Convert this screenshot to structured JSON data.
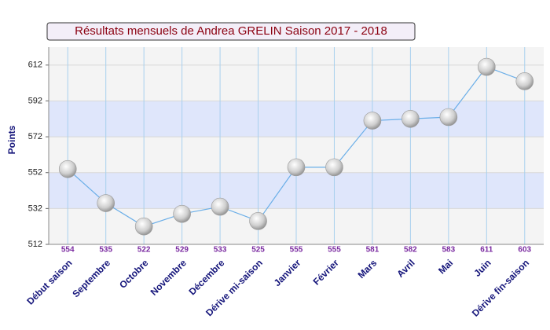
{
  "chart_data": {
    "type": "line",
    "title": "Résultats mensuels de Andrea GRELIN Saison 2017 - 2018",
    "y_label": "Points",
    "categories": [
      "Début saison",
      "Septembre",
      "Octobre",
      "Novembre",
      "Décembre",
      "Dérive mi-saison",
      "Janvier",
      "Février",
      "Mars",
      "Avril",
      "Mai",
      "Juin",
      "Dérive fin-saison"
    ],
    "values": [
      554,
      535,
      522,
      529,
      533,
      525,
      555,
      555,
      581,
      582,
      583,
      611,
      603
    ],
    "color": "#6aaee8",
    "ylim": [
      512,
      622
    ],
    "yticks": [
      512,
      532,
      552,
      572,
      592,
      612
    ],
    "grid": true
  }
}
